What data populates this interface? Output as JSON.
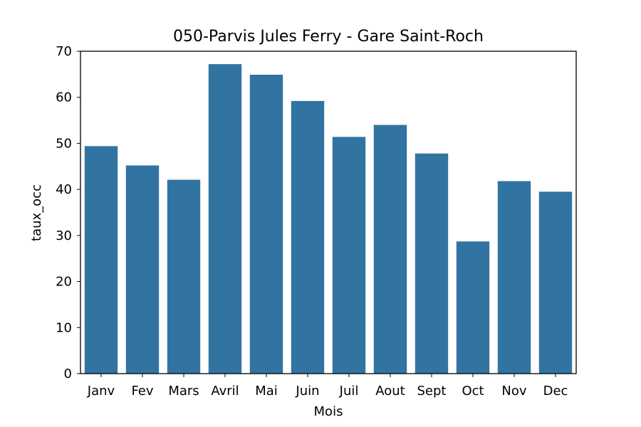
{
  "chart_data": {
    "type": "bar",
    "title": "050-Parvis Jules Ferry - Gare Saint-Roch",
    "xlabel": "Mois",
    "ylabel": "taux_occ",
    "categories": [
      "Janv",
      "Fev",
      "Mars",
      "Avril",
      "Mai",
      "Juin",
      "Juil",
      "Aout",
      "Sept",
      "Oct",
      "Nov",
      "Dec"
    ],
    "values": [
      49.4,
      45.2,
      42.1,
      67.2,
      64.9,
      59.2,
      51.4,
      54.0,
      47.8,
      28.7,
      41.8,
      39.5
    ],
    "ylim": [
      0,
      70
    ],
    "yticks": [
      0,
      10,
      20,
      30,
      40,
      50,
      60,
      70
    ],
    "bar_color": "#3274a1",
    "grid": false,
    "legend": "none"
  }
}
